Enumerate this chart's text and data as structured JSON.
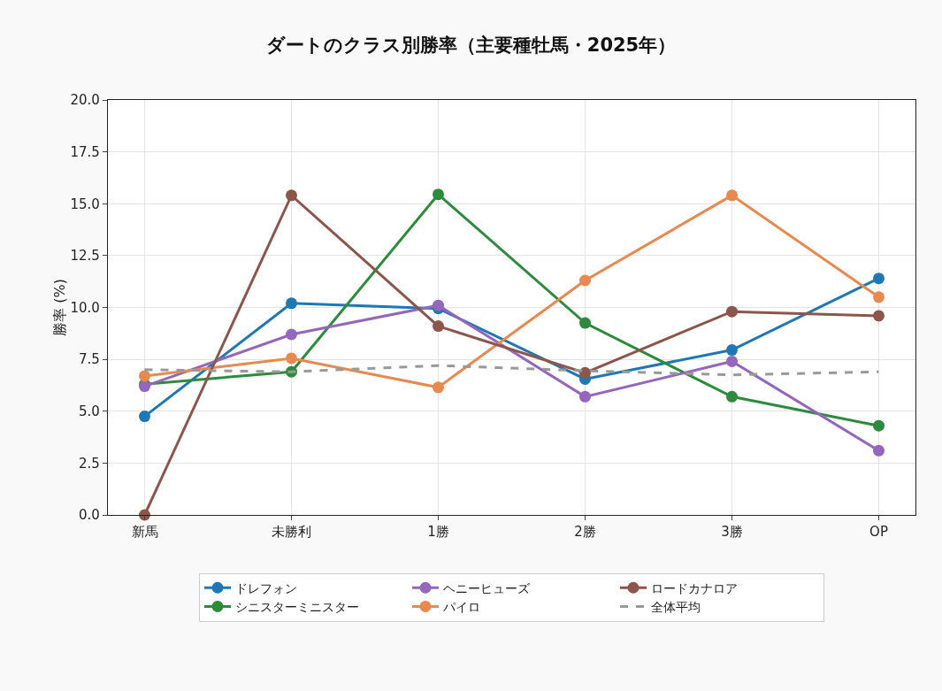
{
  "chart_data": {
    "type": "line",
    "title": "ダートのクラス別勝率（主要種牡馬・2025年）",
    "ylabel": "勝率 (%)",
    "categories": [
      "新馬",
      "未勝利",
      "1勝",
      "2勝",
      "3勝",
      "OP"
    ],
    "ylim": [
      0,
      20
    ],
    "yticks": [
      {
        "value": 0,
        "label": "0.0"
      },
      {
        "value": 2.5,
        "label": "2.5"
      },
      {
        "value": 5,
        "label": "5.0"
      },
      {
        "value": 7.5,
        "label": "7.5"
      },
      {
        "value": 10,
        "label": "10.0"
      },
      {
        "value": 12.5,
        "label": "12.5"
      },
      {
        "value": 15,
        "label": "15.0"
      },
      {
        "value": 17.5,
        "label": "17.5"
      },
      {
        "value": 20,
        "label": "20.0"
      }
    ],
    "grid": true,
    "legend": "bottom",
    "marker": "circle",
    "line_style": "solid",
    "series": [
      {
        "name": "ドレフォン",
        "color": "#1f77b4",
        "values": [
          4.75,
          10.2,
          9.95,
          6.55,
          7.95,
          11.4
        ]
      },
      {
        "name": "シニスターミニスター",
        "color": "#2e8b3e",
        "values": [
          6.3,
          6.9,
          15.45,
          9.25,
          5.7,
          4.3
        ]
      },
      {
        "name": "ヘニーヒューズ",
        "color": "#9467bd",
        "values": [
          6.2,
          8.7,
          10.1,
          5.7,
          7.4,
          3.1
        ]
      },
      {
        "name": "パイロ",
        "color": "#e8894f",
        "values": [
          6.7,
          7.55,
          6.15,
          11.3,
          15.4,
          10.5
        ]
      },
      {
        "name": "ロードカナロア",
        "color": "#8c564b",
        "values": [
          0,
          15.4,
          9.1,
          6.85,
          9.8,
          9.6
        ]
      },
      {
        "name": "全体平均",
        "color": "#999999",
        "values": [
          7.0,
          6.9,
          7.2,
          6.95,
          6.75,
          6.9
        ],
        "marker": "none",
        "line_style": "dashed"
      }
    ]
  }
}
